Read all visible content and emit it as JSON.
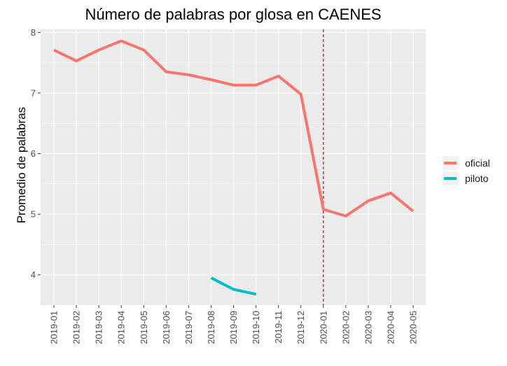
{
  "chart_data": {
    "type": "line",
    "title": "Número de palabras por glosa en CAENES",
    "xlabel": "",
    "ylabel": "Promedio de palabras",
    "categories": [
      "2019-01",
      "2019-02",
      "2019-03",
      "2019-04",
      "2019-05",
      "2019-06",
      "2019-07",
      "2019-08",
      "2019-09",
      "2019-10",
      "2019-11",
      "2019-12",
      "2020-01",
      "2020-02",
      "2020-03",
      "2020-04",
      "2020-05"
    ],
    "yticks": [
      "4",
      "5",
      "6",
      "7",
      "8"
    ],
    "ylim": [
      3.5,
      8.05
    ],
    "series": [
      {
        "name": "oficial",
        "color": "#F8766D",
        "values": [
          7.71,
          7.53,
          7.71,
          7.86,
          7.71,
          7.35,
          7.3,
          7.22,
          7.13,
          7.13,
          7.28,
          6.98,
          5.08,
          4.97,
          5.22,
          5.35,
          5.05
        ]
      },
      {
        "name": "piloto",
        "color": "#00BFC4",
        "values": [
          null,
          null,
          null,
          null,
          null,
          null,
          null,
          3.95,
          3.76,
          3.68,
          null,
          null,
          null,
          null,
          null,
          null,
          null
        ]
      }
    ],
    "vline": {
      "category": "2020-01",
      "color": "#E41A1C",
      "style": "dashed"
    },
    "grid": true,
    "background": "#EBEBEB",
    "legend": {
      "position": "right"
    }
  }
}
